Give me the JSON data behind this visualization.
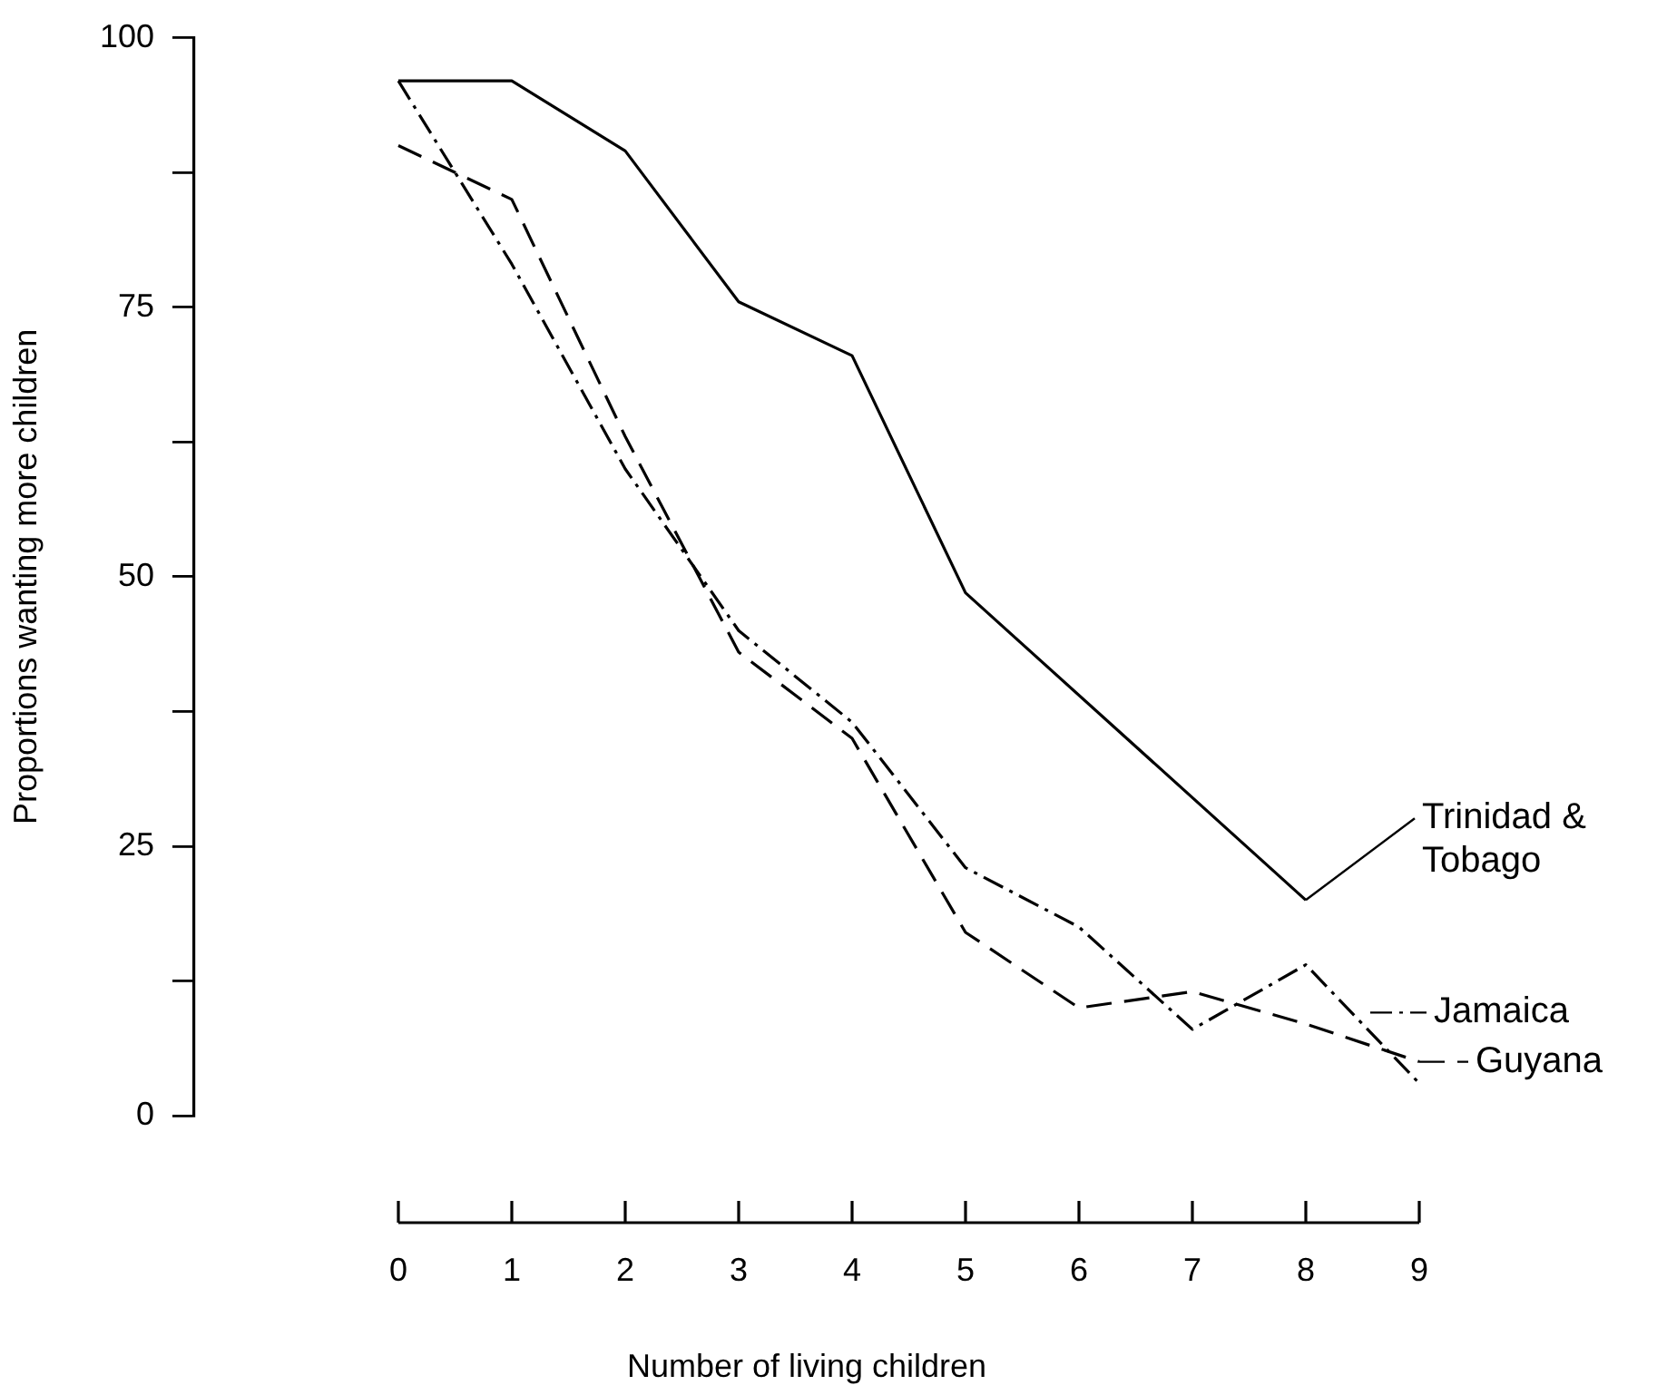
{
  "chart_data": {
    "type": "line",
    "xlabel": "Number of living children",
    "ylabel": "Proportions wanting more children",
    "x": [
      0,
      1,
      2,
      3,
      4,
      5,
      6,
      7,
      8,
      9
    ],
    "xlim": [
      -1.8,
      9
    ],
    "xticks": [
      0,
      1,
      2,
      3,
      4,
      5,
      6,
      7,
      8,
      9
    ],
    "ylim": [
      0,
      100
    ],
    "yticks": [
      0,
      {
        "value": 12.5,
        "label": null
      },
      25,
      {
        "value": 37.5,
        "label": null
      },
      50,
      {
        "value": 62.5,
        "label": null
      },
      75,
      {
        "value": 87.5,
        "label": null
      },
      100
    ],
    "grid": false,
    "legend": "right",
    "marker": "none",
    "series": [
      {
        "name": "Trinidad & Tobago",
        "color": "#000000",
        "line_style": "solid",
        "x": [
          0,
          1,
          2,
          3,
          4,
          5,
          8
        ],
        "values": [
          96,
          96,
          89.5,
          75.5,
          70.5,
          48.5,
          20
        ]
      },
      {
        "name": "Jamaica",
        "color": "#000000",
        "line_style": "dashdot",
        "values": [
          96,
          79,
          60,
          45,
          36.5,
          23,
          17.5,
          8,
          14,
          3
        ]
      },
      {
        "name": "Guyana",
        "color": "#000000",
        "line_style": "dashed",
        "values": [
          90,
          85,
          63,
          43,
          35,
          17,
          10,
          11.5,
          8.5,
          5
        ]
      }
    ]
  }
}
